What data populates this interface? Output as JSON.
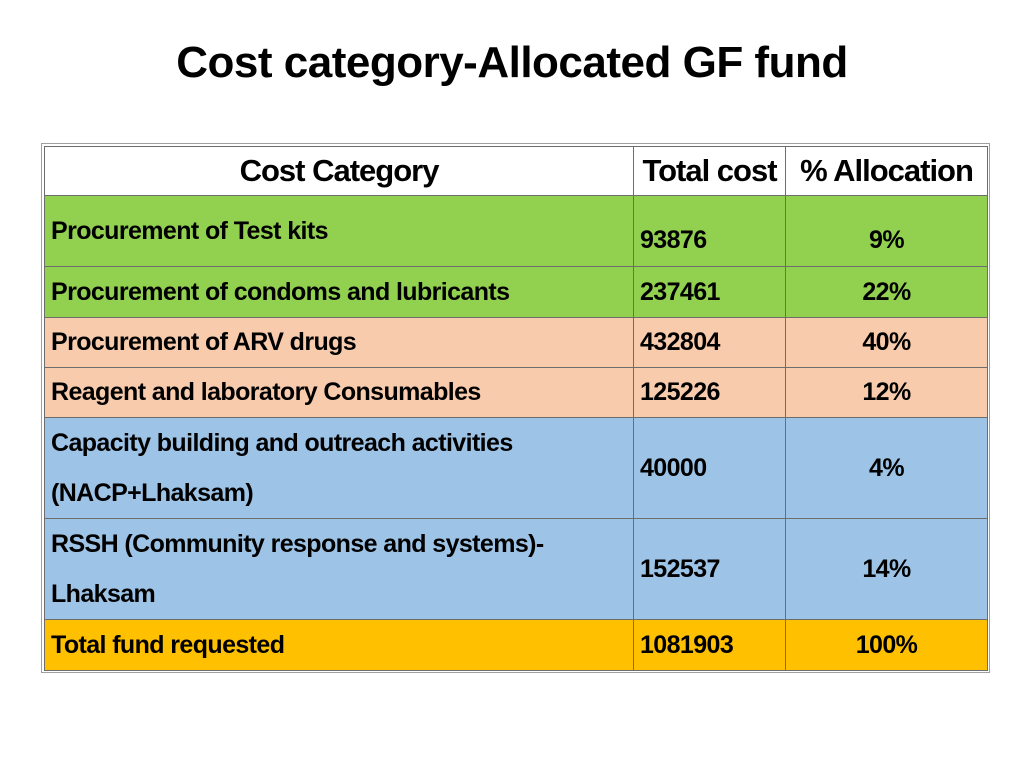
{
  "slide": {
    "title": "Cost category-Allocated GF fund"
  },
  "table": {
    "headers": {
      "category": "Cost Category",
      "total": "Total cost",
      "allocation": "% Allocation"
    },
    "rows": [
      {
        "category": "Procurement of Test kits",
        "total": "93876",
        "allocation": "9%",
        "color": "#92d050"
      },
      {
        "category": "Procurement of condoms and lubricants",
        "total": "237461",
        "allocation": "22%",
        "color": "#92d050"
      },
      {
        "category": "Procurement of ARV drugs",
        "total": "432804",
        "allocation": "40%",
        "color": "#f8cbad"
      },
      {
        "category": "Reagent and laboratory Consumables",
        "total": "125226",
        "allocation": "12%",
        "color": "#f8cbad"
      },
      {
        "category": "Capacity building and outreach activities (NACP+Lhaksam)",
        "total": "40000",
        "allocation": "4%",
        "color": "#9dc3e6"
      },
      {
        "category": "RSSH (Community response and systems)-Lhaksam",
        "total": "152537",
        "allocation": "14%",
        "color": "#9dc3e6"
      }
    ],
    "total_row": {
      "category": "Total fund requested",
      "total": "1081903",
      "allocation": "100%",
      "color": "#ffc000"
    }
  }
}
